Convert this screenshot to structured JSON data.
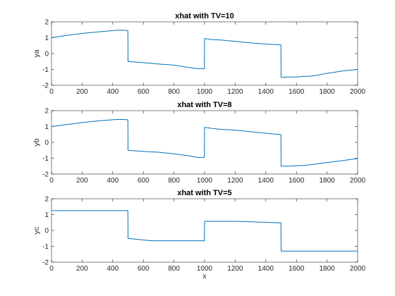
{
  "colors": {
    "line": "#0072bd",
    "axes": "#262626",
    "background": "#ffffff"
  },
  "chart_data": [
    {
      "type": "line",
      "title": "xhat with TV=10",
      "xlabel": "",
      "ylabel": "ya",
      "xlim": [
        0,
        2000
      ],
      "ylim": [
        -2,
        2
      ],
      "xticks": [
        0,
        200,
        400,
        600,
        800,
        1000,
        1200,
        1400,
        1600,
        1800,
        2000
      ],
      "yticks": [
        -2,
        -1,
        0,
        1,
        2
      ],
      "grid": false,
      "series": [
        {
          "x": [
            0,
            100,
            200,
            300,
            400,
            450,
            499,
            500,
            600,
            700,
            800,
            900,
            950,
            999,
            1000,
            1050,
            1100,
            1200,
            1300,
            1400,
            1450,
            1499,
            1500,
            1550,
            1600,
            1650,
            1700,
            1800,
            1900,
            2000
          ],
          "y": [
            1.0,
            1.15,
            1.27,
            1.36,
            1.45,
            1.48,
            1.45,
            -0.5,
            -0.57,
            -0.66,
            -0.73,
            -0.88,
            -0.95,
            -0.95,
            0.95,
            0.88,
            0.86,
            0.77,
            0.67,
            0.6,
            0.57,
            0.55,
            -1.5,
            -1.48,
            -1.48,
            -1.44,
            -1.42,
            -1.25,
            -1.1,
            -1.0
          ]
        }
      ]
    },
    {
      "type": "line",
      "title": "xhat with TV=8",
      "xlabel": "",
      "ylabel": "yb",
      "xlim": [
        0,
        2000
      ],
      "ylim": [
        -2,
        2
      ],
      "xticks": [
        0,
        200,
        400,
        600,
        800,
        1000,
        1200,
        1400,
        1600,
        1800,
        2000
      ],
      "yticks": [
        -2,
        -1,
        0,
        1,
        2
      ],
      "grid": false,
      "series": [
        {
          "x": [
            0,
            100,
            200,
            300,
            400,
            450,
            499,
            500,
            600,
            700,
            800,
            900,
            950,
            999,
            1000,
            1050,
            1100,
            1200,
            1300,
            1400,
            1450,
            1499,
            1500,
            1550,
            1600,
            1650,
            1700,
            1800,
            1900,
            2000
          ],
          "y": [
            1.0,
            1.12,
            1.25,
            1.35,
            1.43,
            1.45,
            1.43,
            -0.5,
            -0.57,
            -0.62,
            -0.72,
            -0.85,
            -0.95,
            -0.95,
            0.95,
            0.88,
            0.83,
            0.77,
            0.67,
            0.58,
            0.53,
            0.5,
            -1.5,
            -1.5,
            -1.47,
            -1.45,
            -1.4,
            -1.27,
            -1.15,
            -1.02
          ]
        }
      ]
    },
    {
      "type": "line",
      "title": "xhat with TV=5",
      "xlabel": "x",
      "ylabel": "yc",
      "xlim": [
        0,
        2000
      ],
      "ylim": [
        -2,
        2
      ],
      "xticks": [
        0,
        200,
        400,
        600,
        800,
        1000,
        1200,
        1400,
        1600,
        1800,
        2000
      ],
      "yticks": [
        -2,
        -1,
        0,
        1,
        2
      ],
      "grid": false,
      "series": [
        {
          "x": [
            0,
            499,
            500,
            650,
            999,
            1000,
            1200,
            1499,
            1500,
            2000
          ],
          "y": [
            1.25,
            1.25,
            -0.5,
            -0.65,
            -0.65,
            0.58,
            0.58,
            0.48,
            -1.3,
            -1.3
          ]
        }
      ]
    }
  ]
}
